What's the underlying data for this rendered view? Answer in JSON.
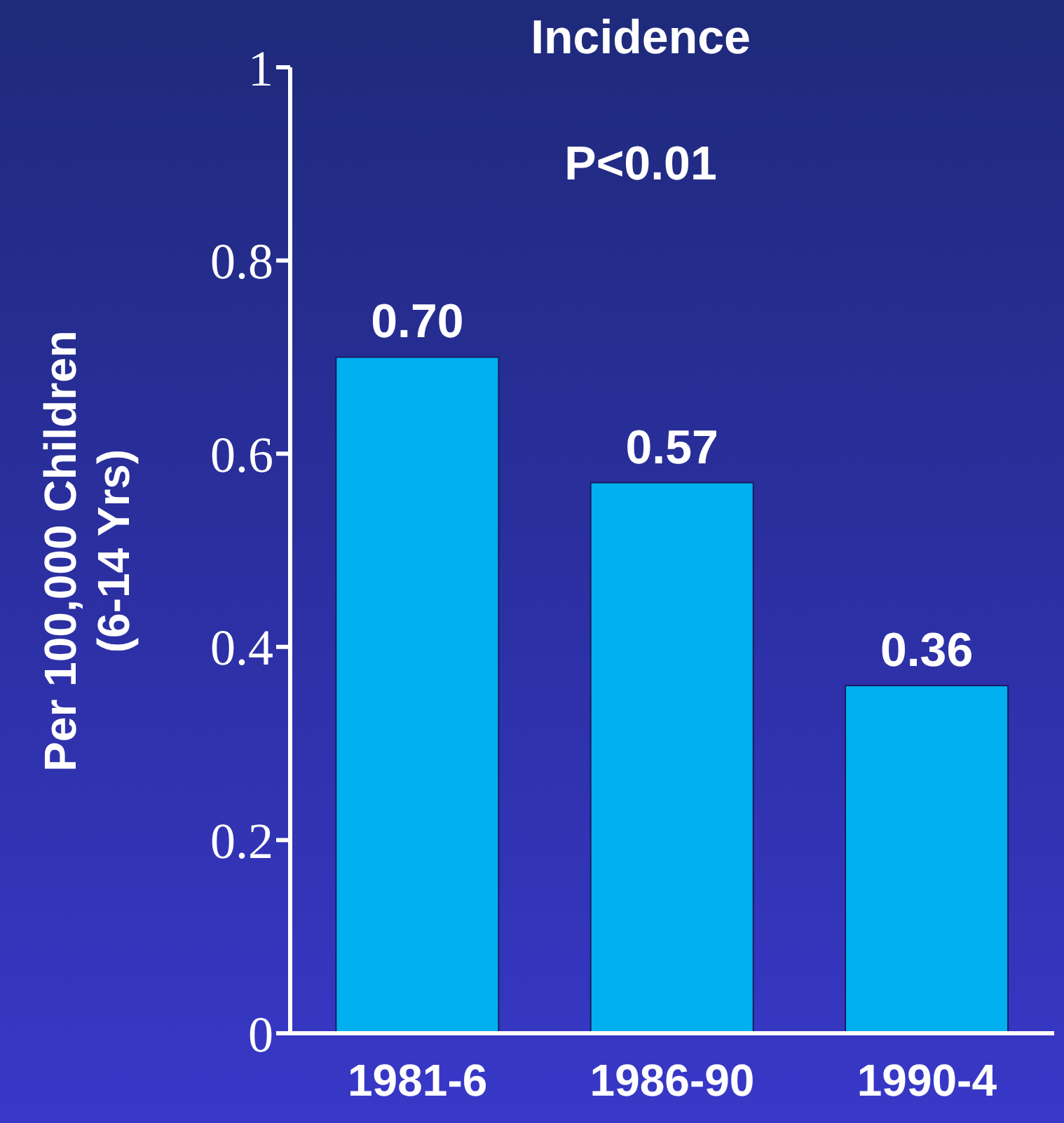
{
  "chart_data": {
    "type": "bar",
    "title": "Incidence",
    "ylabel": "Per 100,000 Children\n(6-14 Yrs)",
    "annotations": [
      "P<0.01"
    ],
    "categories": [
      "1981-6",
      "1986-90",
      "1990-4"
    ],
    "values": [
      0.7,
      0.57,
      0.36
    ],
    "color": "#00b0f0",
    "value_labels": [
      "0.70",
      "0.57",
      "0.36"
    ],
    "ylim": [
      0,
      1
    ],
    "yticks": [
      0,
      0.2,
      0.4,
      0.6,
      0.8,
      1
    ],
    "grid": false,
    "legend": false
  }
}
